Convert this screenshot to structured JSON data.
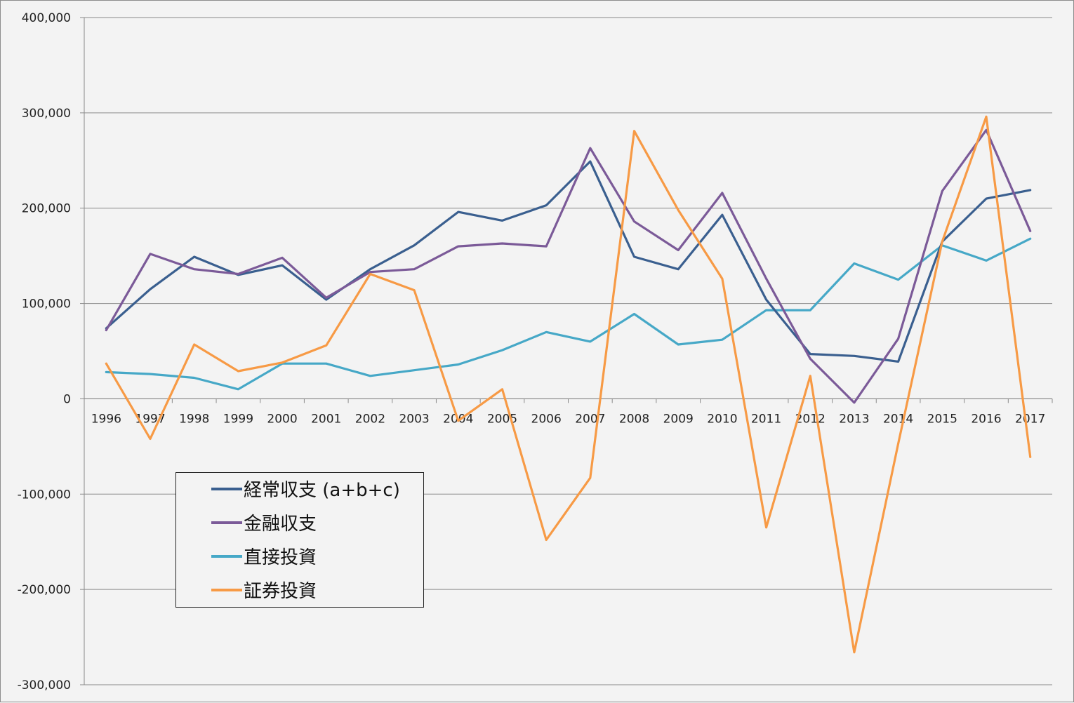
{
  "chart_data": {
    "type": "line",
    "title": "",
    "xlabel": "",
    "ylabel": "",
    "categories": [
      "1996",
      "1997",
      "1998",
      "1999",
      "2000",
      "2001",
      "2002",
      "2003",
      "2004",
      "2005",
      "2006",
      "2007",
      "2008",
      "2009",
      "2010",
      "2011",
      "2012",
      "2013",
      "2014",
      "2015",
      "2016",
      "2017"
    ],
    "ylim": [
      -300000,
      400000
    ],
    "yticks": [
      400000,
      300000,
      200000,
      100000,
      0,
      -100000,
      -200000,
      -300000
    ],
    "ytick_labels": [
      "400,000",
      "300,000",
      "200,000",
      "100,000",
      "0",
      "-100,000",
      "-200,000",
      "-300,000"
    ],
    "grid": "horizontal",
    "legend_position": "bottom-left",
    "series": [
      {
        "name": "経常収支 (a+b+c)",
        "color": "#3a5f8f",
        "values": [
          74000,
          115000,
          149000,
          130000,
          140000,
          104000,
          136000,
          161000,
          196000,
          187000,
          203000,
          249000,
          149000,
          136000,
          193000,
          104000,
          47000,
          45000,
          39000,
          165000,
          210000,
          219000
        ]
      },
      {
        "name": "金融収支",
        "color": "#7b5a98",
        "values": [
          72000,
          152000,
          136000,
          131000,
          148000,
          106000,
          133000,
          136000,
          160000,
          163000,
          160000,
          263000,
          186000,
          156000,
          216000,
          126000,
          42000,
          -4000,
          63000,
          218000,
          282000,
          176000
        ]
      },
      {
        "name": "直接投資",
        "color": "#46a8c7",
        "values": [
          28000,
          26000,
          22000,
          10000,
          37000,
          37000,
          24000,
          30000,
          36000,
          51000,
          70000,
          60000,
          89000,
          57000,
          62000,
          93000,
          93000,
          142000,
          125000,
          161000,
          145000,
          168000
        ]
      },
      {
        "name": "証券投資",
        "color": "#f79a45",
        "values": [
          37000,
          -42000,
          57000,
          29000,
          38000,
          56000,
          131000,
          114000,
          -23000,
          10000,
          -148000,
          -83000,
          281000,
          198000,
          126000,
          -135000,
          24000,
          -266000,
          -47000,
          165000,
          296000,
          -61000
        ]
      }
    ]
  }
}
